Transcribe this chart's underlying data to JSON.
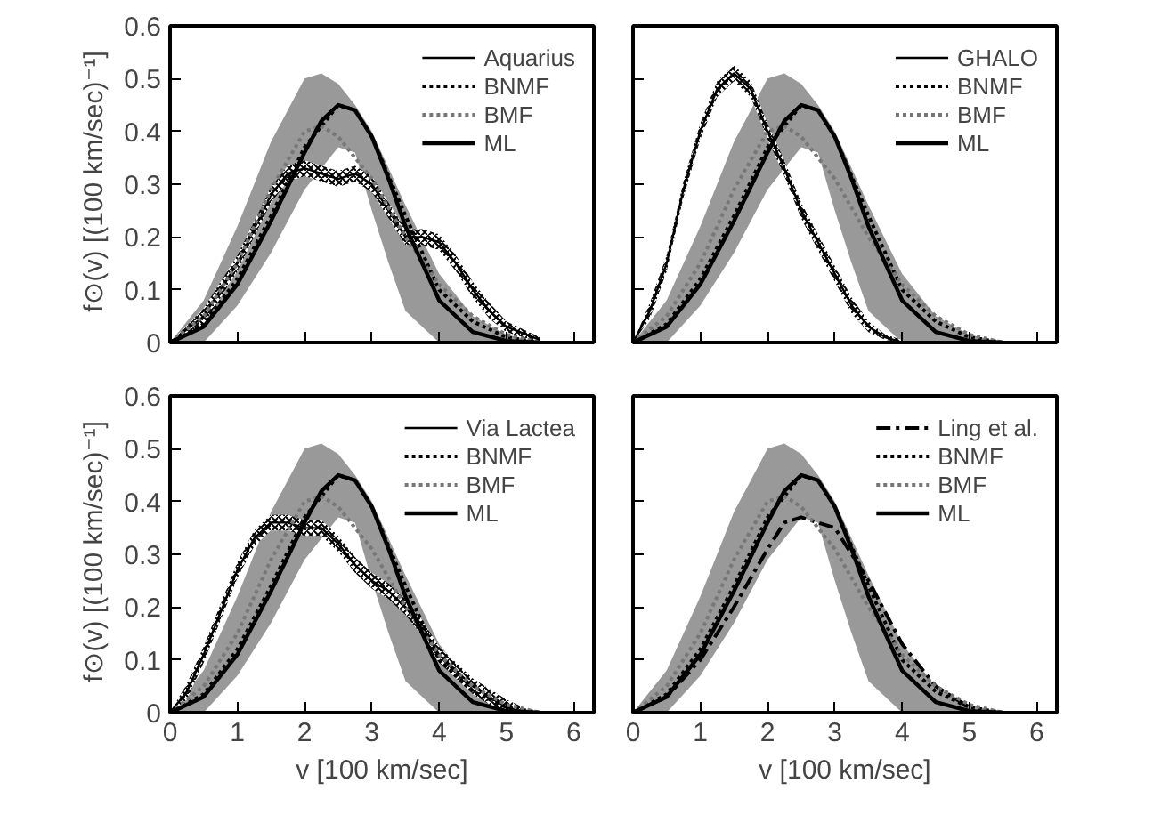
{
  "chart_data": [
    {
      "type": "line",
      "xlabel": null,
      "ylabel": "f⊙(v) [(100 km/sec)⁻¹]",
      "xlim": [
        0,
        6.3
      ],
      "ylim": [
        0,
        0.6
      ],
      "xticks": [
        0,
        1,
        2,
        3,
        4,
        5,
        6
      ],
      "yticks": [
        0,
        0.1,
        0.2,
        0.3,
        0.4,
        0.5,
        0.6
      ],
      "tick_labels": "y",
      "grid": false,
      "legend": "top right",
      "series": [
        {
          "name": "Aquarius",
          "type": "line",
          "color": "#000000",
          "x": [
            0,
            0.5,
            1,
            1.5,
            1.75,
            2,
            2.25,
            2.5,
            2.75,
            3,
            3.25,
            3.5,
            3.75,
            4,
            4.25,
            4.5,
            4.75,
            5,
            5.5
          ],
          "values": [
            0,
            0.05,
            0.15,
            0.28,
            0.32,
            0.33,
            0.32,
            0.31,
            0.32,
            0.3,
            0.25,
            0.2,
            0.2,
            0.19,
            0.15,
            0.1,
            0.06,
            0.03,
            0.005
          ],
          "lower": [
            0,
            0.035,
            0.135,
            0.265,
            0.305,
            0.315,
            0.305,
            0.295,
            0.305,
            0.285,
            0.235,
            0.185,
            0.185,
            0.175,
            0.135,
            0.085,
            0.045,
            0.02,
            0
          ],
          "upper": [
            0,
            0.065,
            0.165,
            0.295,
            0.335,
            0.345,
            0.335,
            0.325,
            0.335,
            0.315,
            0.265,
            0.215,
            0.215,
            0.205,
            0.165,
            0.115,
            0.075,
            0.04,
            0.01
          ]
        },
        {
          "name": "BNMF",
          "type": "line",
          "line_style": "dotted",
          "color": "#000000",
          "x": [
            0,
            0.5,
            1,
            1.5,
            2,
            2.5,
            2.75,
            3,
            3.5,
            4,
            4.5,
            5,
            5.5
          ],
          "values": [
            0,
            0.035,
            0.12,
            0.24,
            0.37,
            0.45,
            0.44,
            0.39,
            0.24,
            0.1,
            0.04,
            0.01,
            0
          ]
        },
        {
          "name": "BMF",
          "type": "line",
          "line_style": "dotted",
          "color": "#777777",
          "x": [
            0,
            0.5,
            1,
            1.5,
            2,
            2.25,
            2.5,
            3,
            3.5,
            4,
            4.5,
            5,
            5.5
          ],
          "values": [
            0,
            0.05,
            0.15,
            0.29,
            0.4,
            0.41,
            0.39,
            0.31,
            0.2,
            0.11,
            0.05,
            0.015,
            0
          ]
        },
        {
          "name": "ML",
          "type": "line",
          "line_style": "solid",
          "color": "#000000",
          "x": [
            0,
            0.5,
            1,
            1.5,
            2,
            2.25,
            2.5,
            2.75,
            3,
            3.25,
            3.5,
            4,
            4.5,
            5,
            5.5
          ],
          "values": [
            0,
            0.03,
            0.11,
            0.23,
            0.36,
            0.42,
            0.45,
            0.44,
            0.39,
            0.31,
            0.22,
            0.08,
            0.02,
            0.003,
            0
          ],
          "lower": [
            0,
            0,
            0.07,
            0.17,
            0.29,
            0.33,
            0.37,
            0.36,
            0.25,
            0.15,
            0.06,
            0,
            0,
            0,
            0
          ],
          "upper": [
            0,
            0.08,
            0.22,
            0.38,
            0.5,
            0.51,
            0.49,
            0.45,
            0.4,
            0.33,
            0.26,
            0.13,
            0.05,
            0.015,
            0
          ]
        }
      ]
    },
    {
      "type": "line",
      "xlabel": null,
      "ylabel": null,
      "xlim": [
        0,
        6.3
      ],
      "ylim": [
        0,
        0.6
      ],
      "xticks": [
        0,
        1,
        2,
        3,
        4,
        5,
        6
      ],
      "yticks": [
        0,
        0.1,
        0.2,
        0.3,
        0.4,
        0.5,
        0.6
      ],
      "tick_labels": false,
      "grid": false,
      "legend": "top right",
      "series": [
        {
          "name": "GHALO",
          "type": "line",
          "color": "#000000",
          "x": [
            0,
            0.25,
            0.5,
            0.75,
            1,
            1.25,
            1.5,
            1.75,
            2,
            2.25,
            2.5,
            2.75,
            3,
            3.25,
            3.5,
            3.75,
            4
          ],
          "values": [
            0,
            0.06,
            0.15,
            0.29,
            0.4,
            0.48,
            0.51,
            0.48,
            0.4,
            0.33,
            0.25,
            0.19,
            0.13,
            0.07,
            0.03,
            0.01,
            0
          ],
          "lower": [
            0,
            0.045,
            0.135,
            0.275,
            0.385,
            0.465,
            0.495,
            0.465,
            0.385,
            0.315,
            0.235,
            0.175,
            0.115,
            0.055,
            0.02,
            0.005,
            0
          ],
          "upper": [
            0,
            0.075,
            0.165,
            0.305,
            0.415,
            0.495,
            0.525,
            0.495,
            0.415,
            0.345,
            0.265,
            0.205,
            0.145,
            0.085,
            0.04,
            0.015,
            0.005
          ]
        },
        {
          "name": "BNMF",
          "type": "line",
          "line_style": "dotted",
          "color": "#000000",
          "x": [
            0,
            0.5,
            1,
            1.5,
            2,
            2.5,
            2.75,
            3,
            3.5,
            4,
            4.5,
            5,
            5.5
          ],
          "values": [
            0,
            0.035,
            0.12,
            0.24,
            0.37,
            0.45,
            0.44,
            0.39,
            0.24,
            0.1,
            0.04,
            0.01,
            0
          ]
        },
        {
          "name": "BMF",
          "type": "line",
          "line_style": "dotted",
          "color": "#777777",
          "x": [
            0,
            0.5,
            1,
            1.5,
            2,
            2.25,
            2.5,
            3,
            3.5,
            4,
            4.5,
            5,
            5.5
          ],
          "values": [
            0,
            0.05,
            0.15,
            0.29,
            0.4,
            0.41,
            0.39,
            0.31,
            0.2,
            0.11,
            0.05,
            0.015,
            0
          ]
        },
        {
          "name": "ML",
          "type": "line",
          "line_style": "solid",
          "color": "#000000",
          "x": [
            0,
            0.5,
            1,
            1.5,
            2,
            2.25,
            2.5,
            2.75,
            3,
            3.25,
            3.5,
            4,
            4.5,
            5,
            5.5
          ],
          "values": [
            0,
            0.03,
            0.11,
            0.23,
            0.36,
            0.42,
            0.45,
            0.44,
            0.39,
            0.31,
            0.22,
            0.08,
            0.02,
            0.003,
            0
          ],
          "lower": [
            0,
            0,
            0.07,
            0.17,
            0.29,
            0.33,
            0.37,
            0.36,
            0.25,
            0.15,
            0.06,
            0,
            0,
            0,
            0
          ],
          "upper": [
            0,
            0.08,
            0.22,
            0.38,
            0.5,
            0.51,
            0.49,
            0.45,
            0.4,
            0.33,
            0.26,
            0.13,
            0.05,
            0.015,
            0
          ]
        }
      ]
    },
    {
      "type": "line",
      "xlabel": "v [100 km/sec]",
      "ylabel": "f⊙(v) [(100 km/sec)⁻¹]",
      "xlim": [
        0,
        6.3
      ],
      "ylim": [
        0,
        0.6
      ],
      "xticks": [
        0,
        1,
        2,
        3,
        4,
        5,
        6
      ],
      "yticks": [
        0,
        0.1,
        0.2,
        0.3,
        0.4,
        0.5,
        0.6
      ],
      "grid": false,
      "legend": "top right",
      "series": [
        {
          "name": "Via Lactea",
          "type": "line",
          "color": "#000000",
          "x": [
            0,
            0.25,
            0.5,
            0.75,
            1,
            1.25,
            1.5,
            1.75,
            2,
            2.25,
            2.5,
            2.75,
            3,
            3.25,
            3.5,
            3.75,
            4,
            4.25,
            4.5,
            4.75,
            5,
            5.25
          ],
          "values": [
            0,
            0.04,
            0.11,
            0.19,
            0.27,
            0.33,
            0.36,
            0.36,
            0.35,
            0.35,
            0.32,
            0.28,
            0.25,
            0.23,
            0.2,
            0.16,
            0.11,
            0.08,
            0.05,
            0.03,
            0.01,
            0
          ],
          "lower": [
            0,
            0.025,
            0.095,
            0.175,
            0.255,
            0.315,
            0.345,
            0.345,
            0.335,
            0.335,
            0.305,
            0.265,
            0.235,
            0.215,
            0.185,
            0.145,
            0.095,
            0.065,
            0.035,
            0.015,
            0,
            0
          ],
          "upper": [
            0,
            0.055,
            0.125,
            0.205,
            0.285,
            0.345,
            0.375,
            0.375,
            0.365,
            0.365,
            0.335,
            0.295,
            0.265,
            0.245,
            0.215,
            0.175,
            0.125,
            0.095,
            0.065,
            0.045,
            0.025,
            0.01
          ]
        },
        {
          "name": "BNMF",
          "type": "line",
          "line_style": "dotted",
          "color": "#000000",
          "x": [
            0,
            0.5,
            1,
            1.5,
            2,
            2.5,
            2.75,
            3,
            3.5,
            4,
            4.5,
            5,
            5.5
          ],
          "values": [
            0,
            0.035,
            0.12,
            0.24,
            0.37,
            0.45,
            0.44,
            0.39,
            0.24,
            0.1,
            0.04,
            0.01,
            0
          ]
        },
        {
          "name": "BMF",
          "type": "line",
          "line_style": "dotted",
          "color": "#777777",
          "x": [
            0,
            0.5,
            1,
            1.5,
            2,
            2.25,
            2.5,
            3,
            3.5,
            4,
            4.5,
            5,
            5.5
          ],
          "values": [
            0,
            0.05,
            0.15,
            0.29,
            0.4,
            0.41,
            0.39,
            0.31,
            0.2,
            0.11,
            0.05,
            0.015,
            0
          ]
        },
        {
          "name": "ML",
          "type": "line",
          "line_style": "solid",
          "color": "#000000",
          "x": [
            0,
            0.5,
            1,
            1.5,
            2,
            2.25,
            2.5,
            2.75,
            3,
            3.25,
            3.5,
            4,
            4.5,
            5,
            5.5
          ],
          "values": [
            0,
            0.03,
            0.11,
            0.23,
            0.36,
            0.42,
            0.45,
            0.44,
            0.39,
            0.31,
            0.22,
            0.08,
            0.02,
            0.003,
            0
          ],
          "lower": [
            0,
            0,
            0.07,
            0.17,
            0.29,
            0.33,
            0.37,
            0.36,
            0.25,
            0.15,
            0.06,
            0,
            0,
            0,
            0
          ],
          "upper": [
            0,
            0.08,
            0.22,
            0.38,
            0.5,
            0.51,
            0.49,
            0.45,
            0.4,
            0.33,
            0.26,
            0.13,
            0.05,
            0.015,
            0
          ]
        }
      ]
    },
    {
      "type": "line",
      "xlabel": "v [100 km/sec]",
      "ylabel": null,
      "xlim": [
        0,
        6.3
      ],
      "ylim": [
        0,
        0.6
      ],
      "xticks": [
        0,
        1,
        2,
        3,
        4,
        5,
        6
      ],
      "yticks": [
        0,
        0.1,
        0.2,
        0.3,
        0.4,
        0.5,
        0.6
      ],
      "tick_labels": "x",
      "grid": false,
      "legend": "top right",
      "series": [
        {
          "name": "Ling et al.",
          "type": "line",
          "line_style": "dashed",
          "color": "#000000",
          "x": [
            0,
            0.5,
            1,
            1.5,
            2,
            2.25,
            2.5,
            2.75,
            3,
            3.25,
            3.5,
            4,
            4.5,
            5
          ],
          "values": [
            0,
            0.03,
            0.1,
            0.2,
            0.31,
            0.36,
            0.37,
            0.36,
            0.35,
            0.3,
            0.25,
            0.13,
            0.05,
            0.01
          ]
        },
        {
          "name": "BNMF",
          "type": "line",
          "line_style": "dotted",
          "color": "#000000",
          "x": [
            0,
            0.5,
            1,
            1.5,
            2,
            2.5,
            2.75,
            3,
            3.5,
            4,
            4.5,
            5,
            5.5
          ],
          "values": [
            0,
            0.035,
            0.12,
            0.24,
            0.37,
            0.45,
            0.44,
            0.39,
            0.24,
            0.1,
            0.04,
            0.01,
            0
          ]
        },
        {
          "name": "BMF",
          "type": "line",
          "line_style": "dotted",
          "color": "#777777",
          "x": [
            0,
            0.5,
            1,
            1.5,
            2,
            2.25,
            2.5,
            3,
            3.5,
            4,
            4.5,
            5,
            5.5
          ],
          "values": [
            0,
            0.05,
            0.15,
            0.29,
            0.4,
            0.41,
            0.39,
            0.31,
            0.2,
            0.11,
            0.05,
            0.015,
            0
          ]
        },
        {
          "name": "ML",
          "type": "line",
          "line_style": "solid",
          "color": "#000000",
          "x": [
            0,
            0.5,
            1,
            1.5,
            2,
            2.25,
            2.5,
            2.75,
            3,
            3.25,
            3.5,
            4,
            4.5,
            5,
            5.5
          ],
          "values": [
            0,
            0.03,
            0.11,
            0.23,
            0.36,
            0.42,
            0.45,
            0.44,
            0.39,
            0.31,
            0.22,
            0.08,
            0.02,
            0.003,
            0
          ],
          "lower": [
            0,
            0,
            0.07,
            0.17,
            0.29,
            0.33,
            0.37,
            0.36,
            0.25,
            0.15,
            0.06,
            0,
            0,
            0,
            0
          ],
          "upper": [
            0,
            0.08,
            0.22,
            0.38,
            0.5,
            0.51,
            0.49,
            0.45,
            0.4,
            0.33,
            0.26,
            0.13,
            0.05,
            0.015,
            0
          ]
        }
      ]
    }
  ]
}
